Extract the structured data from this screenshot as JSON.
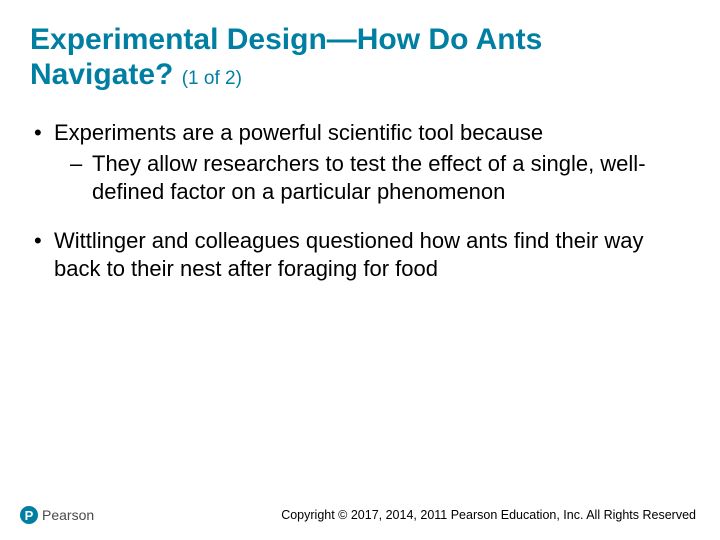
{
  "colors": {
    "title": "#007fa3",
    "body_text": "#000000",
    "background": "#ffffff",
    "logo_bg": "#007fa3",
    "logo_text": "#4a4a4a"
  },
  "typography": {
    "title_fontsize": 30,
    "title_weight": "bold",
    "part_fontsize": 19,
    "body_fontsize": 22,
    "copyright_fontsize": 12.5,
    "logo_fontsize": 14,
    "font_family": "Arial"
  },
  "title": {
    "main": "Experimental Design—How Do Ants Navigate?",
    "part": "(1 of 2)"
  },
  "bullets": [
    {
      "text": "Experiments are a powerful scientific tool because",
      "children": [
        {
          "text": "They allow researchers to test the effect of a single, well-defined factor on a particular phenomenon"
        }
      ]
    },
    {
      "text": "Wittlinger and colleagues questioned how ants find their way back to their nest after foraging for food",
      "children": []
    }
  ],
  "footer": {
    "logo_letter": "P",
    "logo_name": "Pearson",
    "copyright": "Copyright © 2017, 2014, 2011 Pearson Education, Inc. All Rights Reserved"
  }
}
